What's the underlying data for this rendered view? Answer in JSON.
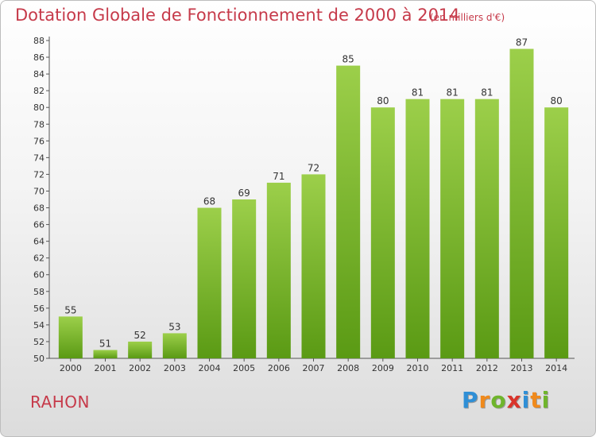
{
  "header": {
    "title": "Dotation Globale de Fonctionnement de 2000 à 2014",
    "subtitle": "(en milliers d'€)"
  },
  "footer": {
    "commune": "RAHON",
    "logo_text": "Proxiti"
  },
  "colors": {
    "title": "#c63a4a",
    "bar_top": "#9ccf4a",
    "bar_bottom": "#5a9a14",
    "axis": "#555555",
    "logo": [
      "#2f8fd6",
      "#f08a1c",
      "#6fb52c",
      "#d9342b",
      "#2f8fd6",
      "#f08a1c",
      "#6fb52c"
    ]
  },
  "chart_data": {
    "type": "bar",
    "title": "Dotation Globale de Fonctionnement de 2000 à 2014",
    "subtitle": "(en milliers d'€)",
    "categories": [
      "2000",
      "2001",
      "2002",
      "2003",
      "2004",
      "2005",
      "2006",
      "2007",
      "2008",
      "2009",
      "2010",
      "2011",
      "2012",
      "2013",
      "2014"
    ],
    "values": [
      55,
      51,
      52,
      53,
      68,
      69,
      71,
      72,
      85,
      80,
      81,
      81,
      81,
      87,
      80
    ],
    "ylim": [
      50,
      88
    ],
    "yticks": [
      50,
      52,
      54,
      56,
      58,
      60,
      62,
      64,
      66,
      68,
      70,
      72,
      74,
      76,
      78,
      80,
      82,
      84,
      86,
      88
    ],
    "data_labels": true,
    "grid": false
  }
}
